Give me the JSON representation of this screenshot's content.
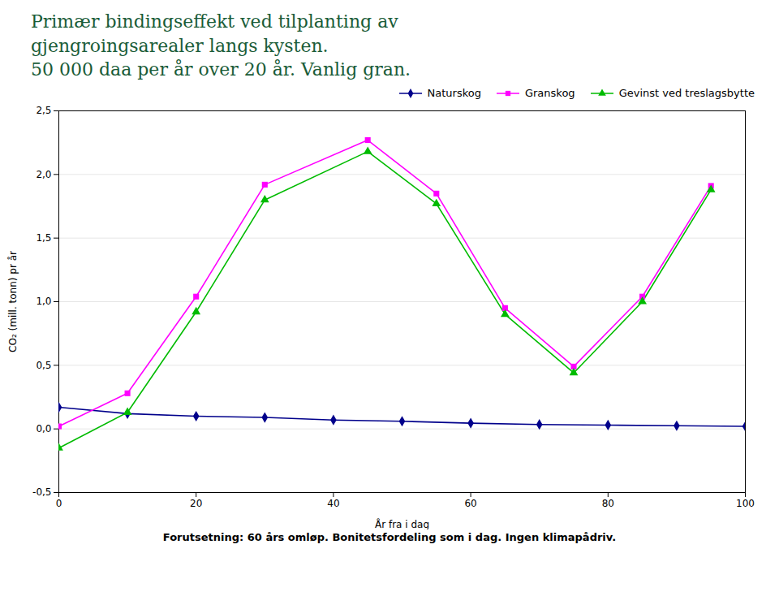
{
  "chart_data": {
    "type": "line",
    "title": "Primær bindingseffekt ved tilplanting av\ngjengroingsarealer langs kysten.\n50 000 daa per år over 20 år. Vanlig gran.",
    "xlabel": "År fra i dag",
    "ylabel": "CO₂ (mill. tonn) pr år",
    "caption": "Forutsetning: 60 års omløp. Bonitetsfordeling som i dag. Ingen klimapådriv.",
    "series": [
      {
        "name": "Naturskog",
        "color": "#00008B",
        "marker": "diamond",
        "x": [
          0,
          10,
          20,
          30,
          40,
          50,
          60,
          70,
          80,
          90,
          100
        ],
        "values": [
          0.17,
          0.12,
          0.1,
          0.09,
          0.07,
          0.06,
          0.045,
          0.035,
          0.03,
          0.025,
          0.02
        ]
      },
      {
        "name": "Granskog",
        "color": "#ff00ff",
        "marker": "square",
        "x": [
          0,
          10,
          20,
          30,
          45,
          55,
          65,
          75,
          85,
          95
        ],
        "values": [
          0.02,
          0.28,
          1.04,
          1.92,
          2.27,
          1.85,
          0.95,
          0.49,
          1.04,
          1.91
        ]
      },
      {
        "name": "Gevinst ved treslagsbytte",
        "color": "#00bb00",
        "marker": "triangle",
        "x": [
          0,
          10,
          20,
          30,
          45,
          55,
          65,
          75,
          85,
          95
        ],
        "values": [
          -0.15,
          0.13,
          0.92,
          1.8,
          2.18,
          1.77,
          0.9,
          0.44,
          1.0,
          1.88
        ]
      }
    ],
    "xlim": [
      0,
      100
    ],
    "xticks": [
      0,
      20,
      40,
      60,
      80,
      100
    ],
    "ylim": [
      -0.5,
      2.5
    ],
    "yticks": [
      {
        "value": -0.5,
        "label": "-0,5"
      },
      {
        "value": 0.0,
        "label": "0,0"
      },
      {
        "value": 0.5,
        "label": "0,5"
      },
      {
        "value": 1.0,
        "label": "1,0"
      },
      {
        "value": 1.5,
        "label": "1,5"
      },
      {
        "value": 2.0,
        "label": "2,0"
      },
      {
        "value": 2.5,
        "label": "2,5"
      }
    ],
    "grid": true,
    "legend": "upper right"
  }
}
